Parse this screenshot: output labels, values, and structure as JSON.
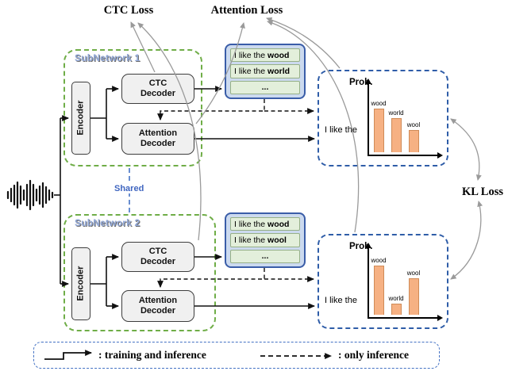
{
  "losses": {
    "ctc": "CTC Loss",
    "attention": "Attention Loss",
    "kl": "KL Loss"
  },
  "shared_label": "Shared",
  "subnet1": {
    "title": "SubNetwork 1",
    "encoder_label": "Encoder",
    "ctc_decoder": {
      "line1": "CTC",
      "line2": "Decoder"
    },
    "attention_decoder": {
      "line1": "Attention",
      "line2": "Decoder"
    }
  },
  "subnet2": {
    "title": "SubNetwork 2",
    "encoder_label": "Encoder",
    "ctc_decoder": {
      "line1": "CTC",
      "line2": "Decoder"
    },
    "attention_decoder": {
      "line1": "Attention",
      "line2": "Decoder"
    }
  },
  "hyp1": {
    "rows": [
      {
        "prefix": "I like the ",
        "word": "wood"
      },
      {
        "prefix": "I like the ",
        "word": "world"
      },
      {
        "prefix": "",
        "word": "..."
      }
    ]
  },
  "hyp2": {
    "rows": [
      {
        "prefix": "I like the ",
        "word": "wood"
      },
      {
        "prefix": "I like the ",
        "word": "wool"
      },
      {
        "prefix": "",
        "word": "..."
      }
    ]
  },
  "prob1": {
    "title": "Prob.",
    "context": "I like the"
  },
  "prob2": {
    "title": "Prob.",
    "context": "I like the"
  },
  "legend": {
    "solid": ": training and inference",
    "dashed": ": only inference"
  },
  "colors": {
    "subnet_border_green": "#6fad47",
    "hyp_box_blue": "#3a5da8",
    "bar_fill_orange": "#f6b183",
    "arrow_gray": "#9a9a9a",
    "shared_blue": "#4472c4"
  },
  "chart_data": [
    {
      "type": "bar",
      "title": "Prob.",
      "context": "I like the",
      "categories": [
        "wood",
        "world",
        "wool"
      ],
      "values": [
        0.5,
        0.39,
        0.25
      ],
      "ylabel": "Prob.",
      "xlabel": "",
      "grid": false,
      "legend_position": "none"
    },
    {
      "type": "bar",
      "title": "Prob.",
      "context": "I like the",
      "categories": [
        "wood",
        "world",
        "wool"
      ],
      "values": [
        0.56,
        0.13,
        0.42
      ],
      "ylabel": "Prob.",
      "xlabel": "",
      "grid": false,
      "legend_position": "none"
    }
  ]
}
